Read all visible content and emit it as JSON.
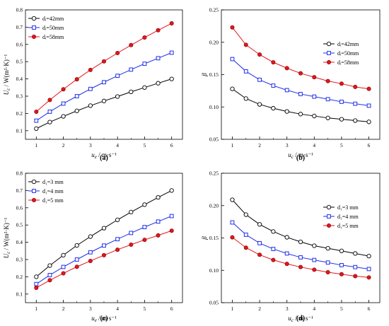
{
  "chart_data": [
    {
      "type": "line",
      "panel_label": "(a)",
      "xlabel": "u_e / m·s⁻¹",
      "ylabel": "U_c / W(m²·K)⁻¹",
      "xlim": [
        0.6,
        6.4
      ],
      "ylim": [
        0.05,
        0.8
      ],
      "xticks": [
        "1",
        "2",
        "3",
        "4",
        "5",
        "6"
      ],
      "yticks": [
        "0.1",
        "0.2",
        "0.3",
        "0.4",
        "0.5",
        "0.6",
        "0.7",
        "0.8"
      ],
      "yticks_values": [
        0.1,
        0.2,
        0.3,
        0.4,
        0.5,
        0.6,
        0.7,
        0.8
      ],
      "legend_position": "top-left",
      "x": [
        1,
        1.5,
        2,
        2.5,
        3,
        3.5,
        4,
        4.5,
        5,
        5.5,
        6
      ],
      "series": [
        {
          "name": "dᵢ=42mm",
          "color": "#000000",
          "marker": "circle-open",
          "values": [
            0.112,
            0.15,
            0.183,
            0.215,
            0.245,
            0.272,
            0.298,
            0.325,
            0.35,
            0.375,
            0.4
          ]
        },
        {
          "name": "dᵢ=50mm",
          "color": "#1f2fe6",
          "marker": "square-open",
          "values": [
            0.158,
            0.21,
            0.257,
            0.3,
            0.342,
            0.381,
            0.418,
            0.454,
            0.488,
            0.52,
            0.552
          ]
        },
        {
          "name": "dᵢ=58mm",
          "color": "#e3161c",
          "marker": "circle-filled",
          "values": [
            0.21,
            0.278,
            0.34,
            0.398,
            0.452,
            0.502,
            0.55,
            0.596,
            0.64,
            0.682,
            0.722
          ]
        }
      ]
    },
    {
      "type": "line",
      "panel_label": "(b)",
      "xlabel": "u_c / m·s⁻¹",
      "ylabel": "β",
      "xlim": [
        0.6,
        6.4
      ],
      "ylim": [
        0.05,
        0.25
      ],
      "xticks": [
        "1",
        "2",
        "3",
        "4",
        "5",
        "6"
      ],
      "yticks": [
        "0.05",
        "0.10",
        "0.15",
        "0.20",
        "0.25"
      ],
      "yticks_values": [
        0.05,
        0.1,
        0.15,
        0.2,
        0.25
      ],
      "legend_position": "top-right",
      "x": [
        1,
        1.5,
        2,
        2.5,
        3,
        3.5,
        4,
        4.5,
        5,
        5.5,
        6
      ],
      "series": [
        {
          "name": "dᵢ=42mm",
          "color": "#000000",
          "marker": "circle-open",
          "values": [
            0.128,
            0.113,
            0.104,
            0.098,
            0.093,
            0.089,
            0.086,
            0.083,
            0.081,
            0.079,
            0.077
          ]
        },
        {
          "name": "dᵢ=50mm",
          "color": "#1f2fe6",
          "marker": "square-open",
          "values": [
            0.174,
            0.155,
            0.142,
            0.133,
            0.126,
            0.12,
            0.116,
            0.112,
            0.108,
            0.105,
            0.102
          ]
        },
        {
          "name": "dᵢ=58mm",
          "color": "#e3161c",
          "marker": "circle-filled",
          "values": [
            0.223,
            0.196,
            0.181,
            0.169,
            0.16,
            0.152,
            0.146,
            0.14,
            0.136,
            0.131,
            0.128
          ]
        }
      ]
    },
    {
      "type": "line",
      "panel_label": "(c)",
      "xlabel": "u_e / m·s⁻¹",
      "ylabel": "U_c / W(m²·K)⁻¹",
      "xlim": [
        0.6,
        6.4
      ],
      "ylim": [
        0.05,
        0.8
      ],
      "xticks": [
        "1",
        "2",
        "3",
        "4",
        "5",
        "6"
      ],
      "yticks": [
        "0.1",
        "0.2",
        "0.3",
        "0.4",
        "0.5",
        "0.6",
        "0.7",
        "0.8"
      ],
      "yticks_values": [
        0.1,
        0.2,
        0.3,
        0.4,
        0.5,
        0.6,
        0.7,
        0.8
      ],
      "legend_position": "top-left",
      "x": [
        1,
        1.5,
        2,
        2.5,
        3,
        3.5,
        4,
        4.5,
        5,
        5.5,
        6
      ],
      "series": [
        {
          "name": "d₁=3 mm",
          "color": "#000000",
          "marker": "circle-open",
          "values": [
            0.2,
            0.265,
            0.325,
            0.382,
            0.433,
            0.482,
            0.53,
            0.575,
            0.618,
            0.66,
            0.7
          ]
        },
        {
          "name": "d₁=4 mm",
          "color": "#1f2fe6",
          "marker": "square-open",
          "values": [
            0.158,
            0.21,
            0.257,
            0.3,
            0.342,
            0.381,
            0.418,
            0.454,
            0.488,
            0.52,
            0.552
          ]
        },
        {
          "name": "d₁=5 mm",
          "color": "#e3161c",
          "marker": "circle-filled",
          "values": [
            0.136,
            0.18,
            0.22,
            0.258,
            0.292,
            0.325,
            0.357,
            0.386,
            0.414,
            0.44,
            0.467
          ]
        }
      ]
    },
    {
      "type": "line",
      "panel_label": "(d)",
      "xlabel": "u_c / m·s⁻¹",
      "ylabel": "β",
      "xlim": [
        0.6,
        6.4
      ],
      "ylim": [
        0.05,
        0.25
      ],
      "xticks": [
        "1",
        "2",
        "3",
        "4",
        "5",
        "6"
      ],
      "yticks": [
        "0.05",
        "0.10",
        "0.15",
        "0.20",
        "0.25"
      ],
      "yticks_values": [
        0.05,
        0.1,
        0.15,
        0.2,
        0.25
      ],
      "legend_position": "top-right",
      "x": [
        1,
        1.5,
        2,
        2.5,
        3,
        3.5,
        4,
        4.5,
        5,
        5.5,
        6
      ],
      "series": [
        {
          "name": "d₁=3 mm",
          "color": "#000000",
          "marker": "circle-open",
          "values": [
            0.209,
            0.186,
            0.171,
            0.16,
            0.151,
            0.144,
            0.138,
            0.134,
            0.13,
            0.126,
            0.122
          ]
        },
        {
          "name": "d₁=4 mm",
          "color": "#1f2fe6",
          "marker": "square-open",
          "values": [
            0.174,
            0.155,
            0.142,
            0.133,
            0.126,
            0.12,
            0.116,
            0.112,
            0.108,
            0.105,
            0.102
          ]
        },
        {
          "name": "d₁=5 mm",
          "color": "#e3161c",
          "marker": "circle-filled",
          "values": [
            0.151,
            0.135,
            0.124,
            0.116,
            0.11,
            0.105,
            0.101,
            0.097,
            0.094,
            0.091,
            0.089
          ]
        }
      ]
    }
  ]
}
